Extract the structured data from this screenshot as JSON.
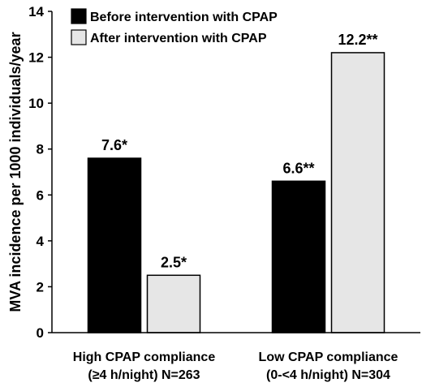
{
  "chart_data": {
    "type": "bar",
    "categories": [
      [
        "High CPAP compliance",
        "(≥4 h/night) N=263"
      ],
      [
        "Low CPAP compliance",
        "(0-<4 h/night) N=304"
      ]
    ],
    "series": [
      {
        "name": "Before intervention with CPAP",
        "values": [
          7.6,
          6.6
        ],
        "labels": [
          "7.6*",
          "6.6**"
        ],
        "color": "#000000"
      },
      {
        "name": "After intervention with CPAP",
        "values": [
          2.5,
          12.2
        ],
        "labels": [
          "2.5*",
          "12.2**"
        ],
        "color": "#e6e6e6"
      }
    ],
    "ylabel": "MVA incidence per 1000 individuals/year",
    "xlabel": "",
    "ylim": [
      0,
      14
    ],
    "yticks": [
      0,
      2,
      4,
      6,
      8,
      10,
      12,
      14
    ],
    "grid": false,
    "legend_position": "top-left"
  }
}
